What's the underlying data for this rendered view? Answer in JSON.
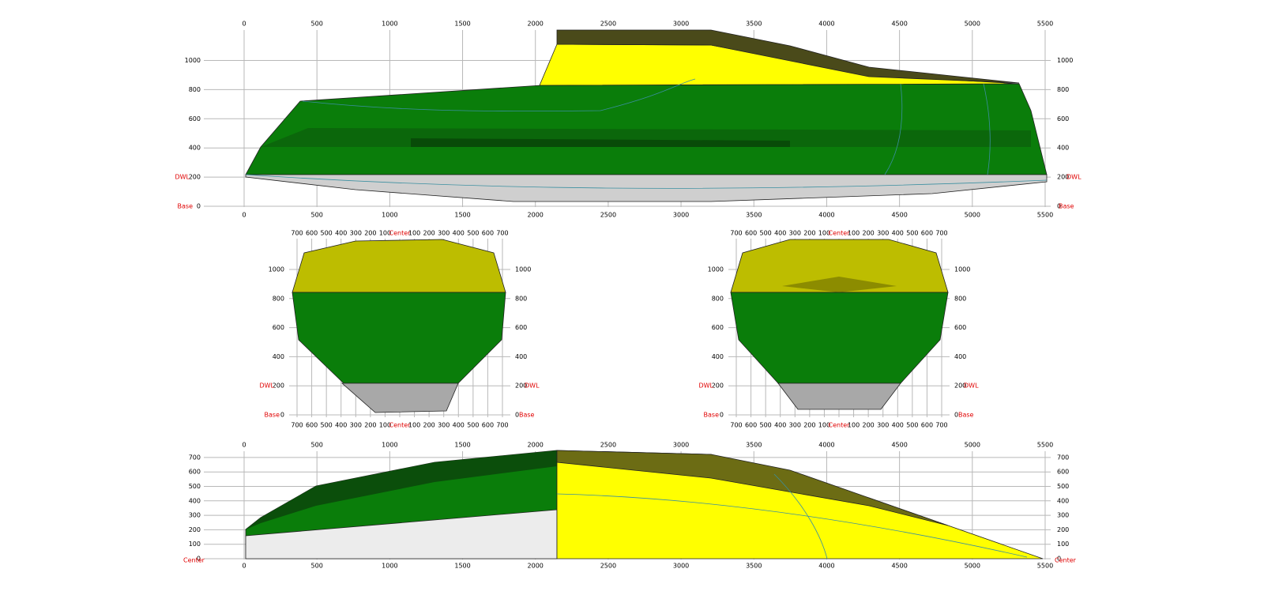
{
  "profile_view": {
    "x_ticks": [
      0,
      500,
      1000,
      1500,
      2000,
      2500,
      3000,
      3500,
      4000,
      4500,
      5000,
      5500
    ],
    "y_ticks": [
      1000,
      800,
      600,
      400,
      200,
      0
    ],
    "dwl_label": "DWL",
    "base_label": "Base"
  },
  "body_views": [
    {
      "x_ticks": [
        700,
        600,
        500,
        400,
        300,
        200,
        100,
        "Center",
        100,
        200,
        300,
        400,
        500,
        600,
        700
      ],
      "y_ticks": [
        1000,
        800,
        600,
        400,
        200,
        0
      ],
      "dwl_label": "DWL",
      "base_label": "Base"
    },
    {
      "x_ticks": [
        700,
        600,
        500,
        400,
        300,
        200,
        100,
        "Center",
        100,
        200,
        300,
        400,
        500,
        600,
        700
      ],
      "y_ticks": [
        1000,
        800,
        600,
        400,
        200,
        0
      ],
      "dwl_label": "DWL",
      "base_label": "Base"
    }
  ],
  "plan_view": {
    "x_ticks": [
      0,
      500,
      1000,
      1500,
      2000,
      2500,
      3000,
      3500,
      4000,
      4500,
      5000,
      5500
    ],
    "y_ticks": [
      700,
      600,
      500,
      400,
      300,
      200,
      100,
      0
    ],
    "center_label": "Center"
  }
}
